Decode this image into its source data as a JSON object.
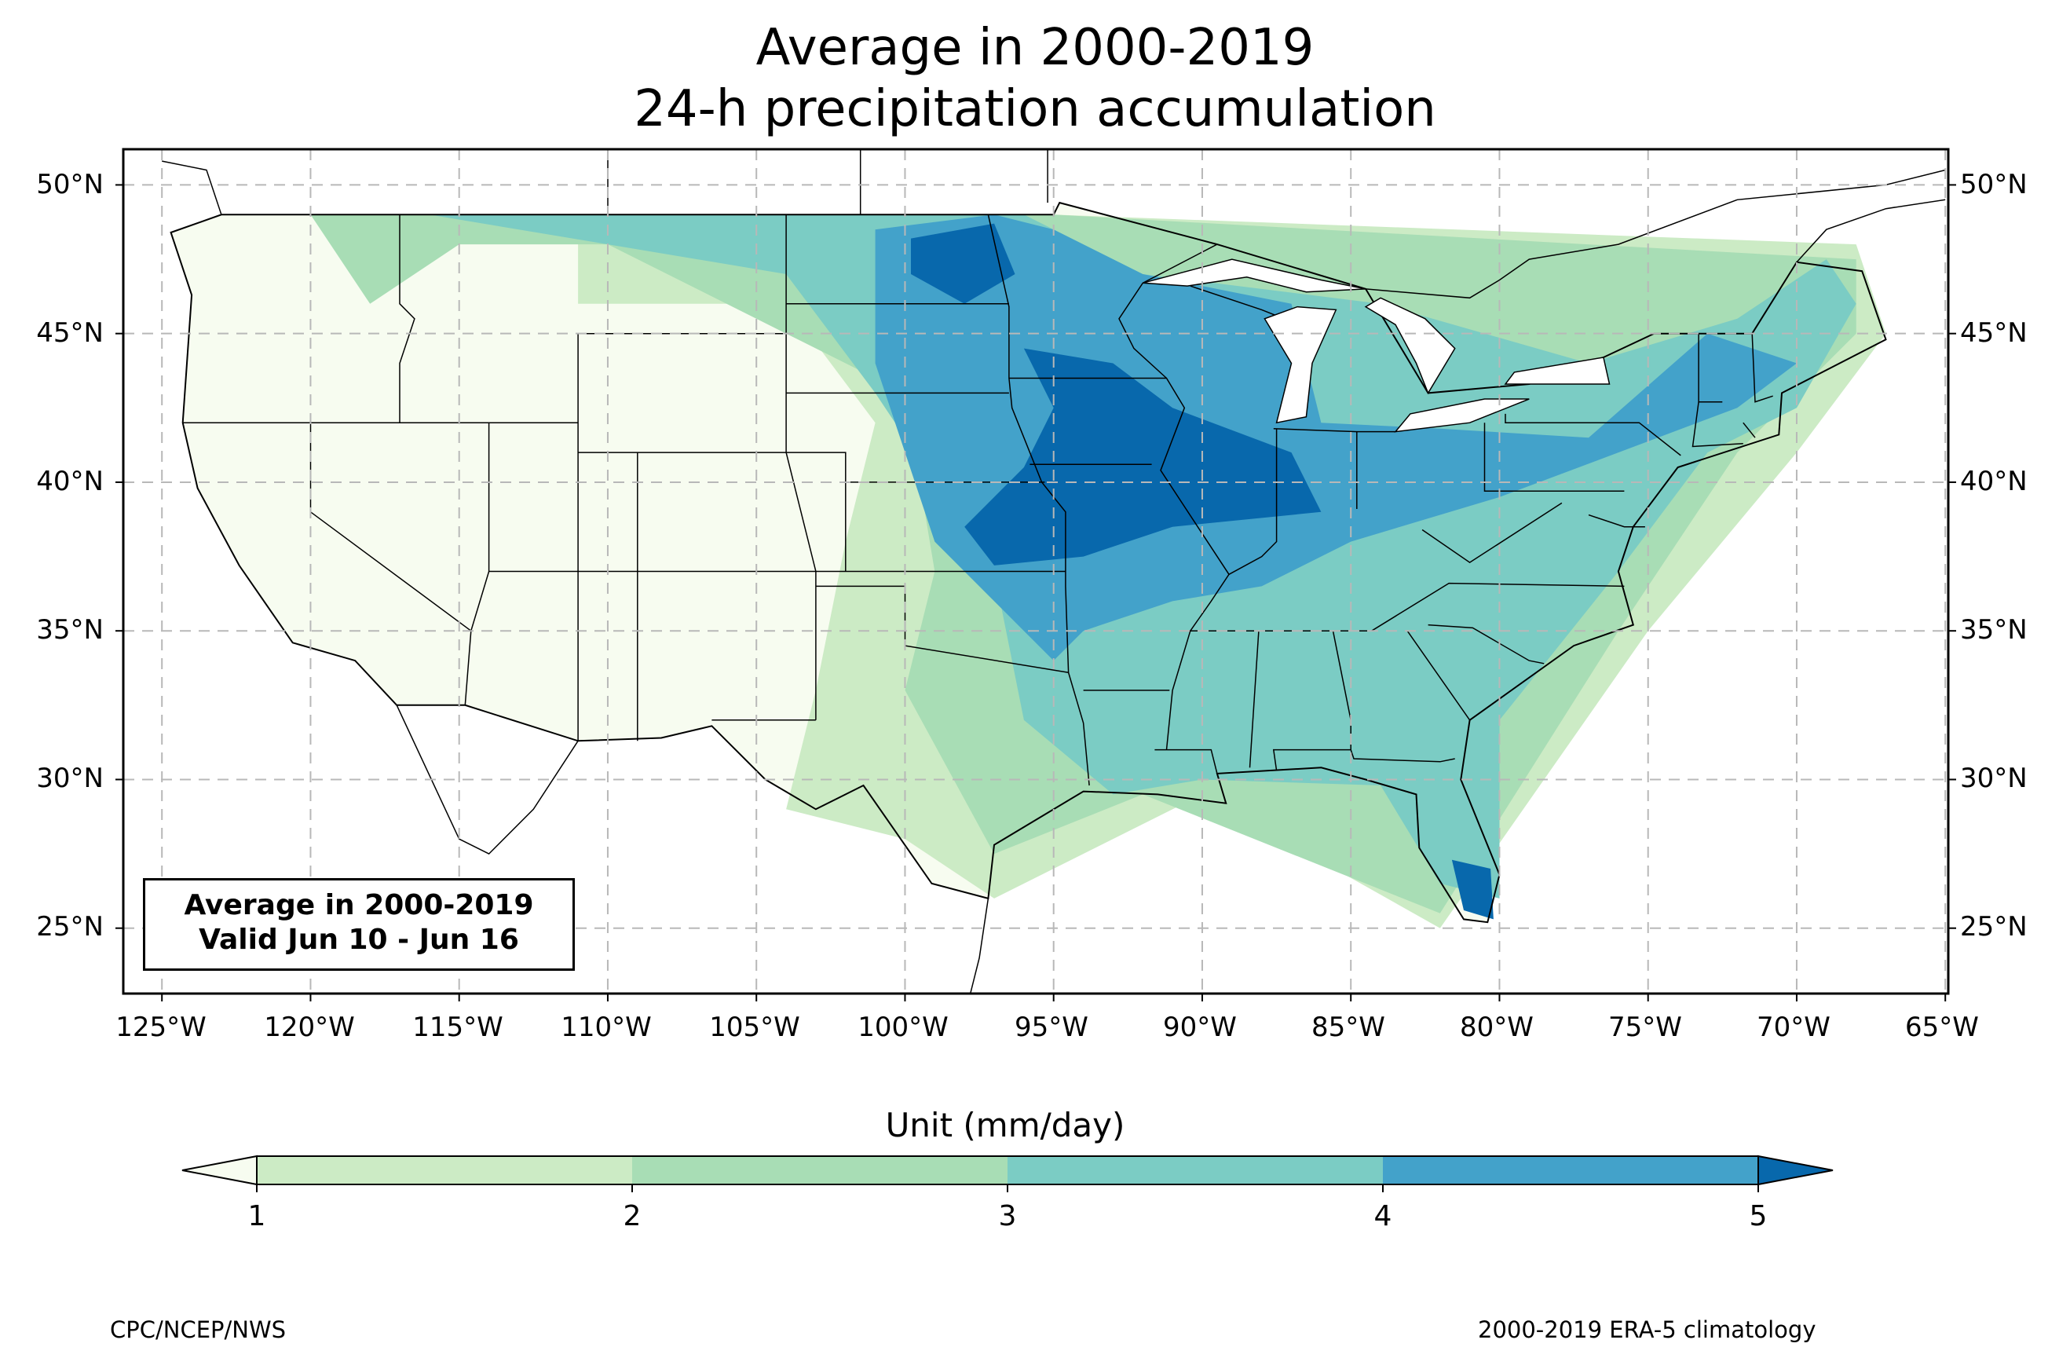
{
  "title": {
    "line1": "Average in 2000-2019",
    "line2": "24-h precipitation accumulation"
  },
  "map": {
    "lon_range": [
      -126.3,
      -64.9
    ],
    "lat_range": [
      22.8,
      51.2
    ],
    "grid_lines": true,
    "lat_ticks": [
      "50°N",
      "45°N",
      "40°N",
      "35°N",
      "30°N",
      "25°N"
    ],
    "lon_ticks": [
      "125°W",
      "120°W",
      "115°W",
      "110°W",
      "105°W",
      "100°W",
      "95°W",
      "90°W",
      "85°W",
      "80°W",
      "75°W",
      "70°W",
      "65°W"
    ],
    "land_base_color": "#f7fcf0",
    "precip_regions": [
      {
        "level": 1,
        "color": "#ccebc5",
        "points": [
          [
            -124.5,
            49
          ],
          [
            -111,
            49
          ],
          [
            -111,
            46
          ],
          [
            -104,
            46
          ],
          [
            -101,
            42
          ],
          [
            -102,
            38
          ],
          [
            -103,
            33
          ],
          [
            -104,
            29
          ],
          [
            -100,
            28
          ],
          [
            -97,
            26
          ],
          [
            -90,
            29.5
          ],
          [
            -82,
            25
          ],
          [
            -75,
            35
          ],
          [
            -70,
            41
          ],
          [
            -67,
            45
          ],
          [
            -68,
            48
          ],
          [
            -95,
            49
          ]
        ]
      },
      {
        "level": 2,
        "color": "#a8ddb5",
        "points": [
          [
            -124.5,
            49
          ],
          [
            -120,
            49
          ],
          [
            -118,
            46
          ],
          [
            -115,
            48
          ],
          [
            -110,
            48
          ],
          [
            -104,
            45
          ],
          [
            -100,
            43
          ],
          [
            -99,
            37
          ],
          [
            -100,
            33
          ],
          [
            -97,
            27.5
          ],
          [
            -92,
            29.5
          ],
          [
            -82,
            25.5
          ],
          [
            -76,
            35
          ],
          [
            -72,
            41
          ],
          [
            -68,
            45
          ],
          [
            -68,
            47.5
          ],
          [
            -95,
            49
          ]
        ]
      },
      {
        "level": 3,
        "color": "#7bccc4",
        "points": [
          [
            -116,
            49
          ],
          [
            -110,
            48
          ],
          [
            -104,
            47
          ],
          [
            -101,
            43
          ],
          [
            -97,
            37
          ],
          [
            -96,
            32
          ],
          [
            -93,
            29.5
          ],
          [
            -90,
            30
          ],
          [
            -84,
            29.8
          ],
          [
            -82,
            26.5
          ],
          [
            -80,
            26
          ],
          [
            -80,
            32
          ],
          [
            -76,
            37
          ],
          [
            -73,
            41
          ],
          [
            -70,
            42.5
          ],
          [
            -68,
            46
          ],
          [
            -69,
            47.5
          ],
          [
            -72,
            45.5
          ],
          [
            -77,
            44
          ],
          [
            -84,
            46
          ],
          [
            -92,
            47
          ],
          [
            -96,
            49
          ]
        ]
      },
      {
        "level": 4,
        "color": "#43a2ca",
        "points": [
          [
            -101,
            48.5
          ],
          [
            -97,
            49
          ],
          [
            -95,
            48.5
          ],
          [
            -92,
            47
          ],
          [
            -87,
            46
          ],
          [
            -86,
            42
          ],
          [
            -82,
            41.8
          ],
          [
            -77,
            41.5
          ],
          [
            -73,
            45
          ],
          [
            -70,
            44
          ],
          [
            -72,
            42.5
          ],
          [
            -76,
            41
          ],
          [
            -80,
            39.5
          ],
          [
            -85,
            38
          ],
          [
            -88,
            36.5
          ],
          [
            -91,
            36
          ],
          [
            -94,
            35
          ],
          [
            -95,
            34
          ],
          [
            -97,
            36
          ],
          [
            -99,
            38
          ],
          [
            -100,
            41
          ],
          [
            -101,
            44
          ]
        ]
      },
      {
        "level": 5,
        "color": "#0868ac",
        "points": [
          [
            -99.8,
            48.2
          ],
          [
            -97,
            48.7
          ],
          [
            -96.3,
            47
          ],
          [
            -98,
            46
          ],
          [
            -99.8,
            47
          ]
        ]
      },
      {
        "level": 5,
        "color": "#0868ac",
        "points": [
          [
            -96,
            44.5
          ],
          [
            -93,
            44
          ],
          [
            -91,
            42.5
          ],
          [
            -87,
            41
          ],
          [
            -86,
            39
          ],
          [
            -91,
            38.5
          ],
          [
            -94,
            37.5
          ],
          [
            -97,
            37.2
          ],
          [
            -98,
            38.5
          ],
          [
            -96,
            40.5
          ],
          [
            -95,
            42.5
          ]
        ]
      },
      {
        "level": 5,
        "color": "#0868ac",
        "points": [
          [
            -81.6,
            27.3
          ],
          [
            -80.3,
            27
          ],
          [
            -80.2,
            25.3
          ],
          [
            -81.2,
            25.6
          ]
        ]
      }
    ]
  },
  "legend_box": {
    "line1": "Average in 2000-2019",
    "line2": "Valid Jun 10 - Jun 16"
  },
  "colorbar": {
    "label": "Unit (mm/day)",
    "ticks": [
      "1",
      "2",
      "3",
      "4",
      "5"
    ],
    "colors": [
      "#f7fcf0",
      "#ccebc5",
      "#a8ddb5",
      "#7bccc4",
      "#43a2ca",
      "#0868ac"
    ]
  },
  "credits": {
    "left": "CPC/NCEP/NWS",
    "right": "2000-2019 ERA-5 climatology"
  }
}
